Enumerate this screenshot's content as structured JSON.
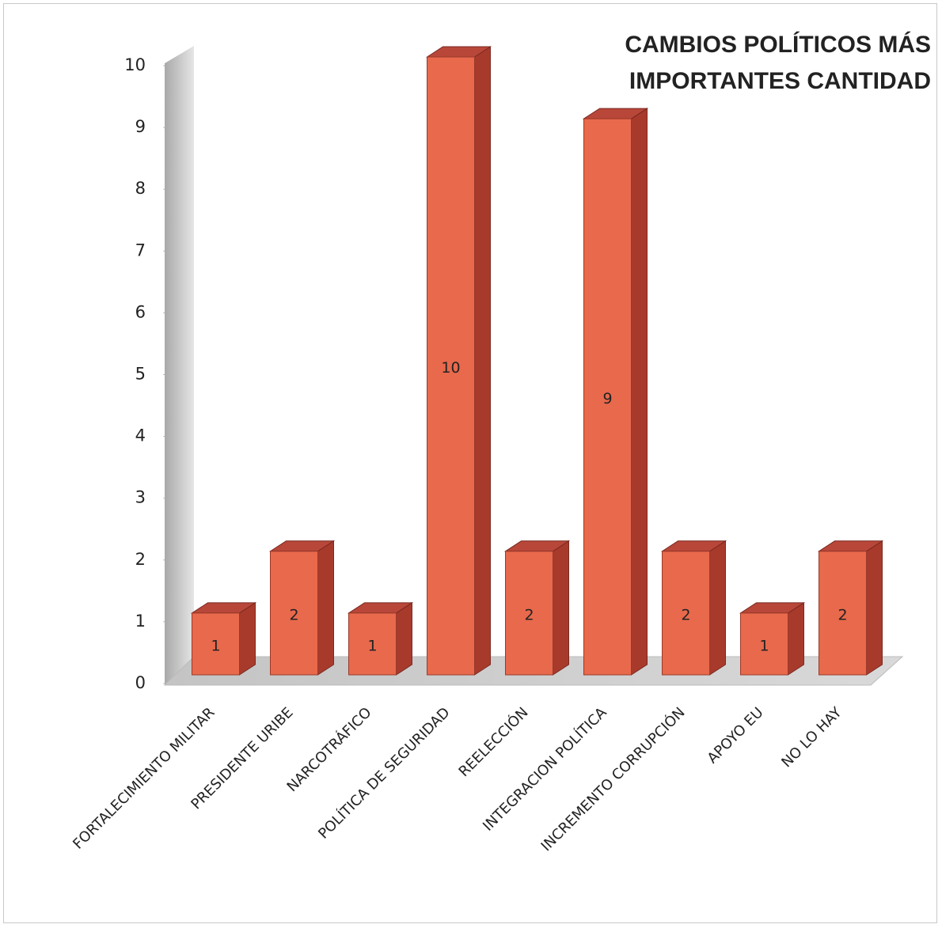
{
  "chart_data": {
    "type": "bar3d",
    "title": "CAMBIOS POLÍTICOS MÁS IMPORTANTES CANTIDAD",
    "categories": [
      "FORTALECIMIENTO MILITAR",
      "PRESIDENTE URIBE",
      "NARCOTRÁFICO",
      "POLÍTICA DE SEGURIDAD",
      "REELECCIÓN",
      "INTEGRACION POLÍTICA",
      "INCREMENTO CORRUPCIÓN",
      "APOYO EU",
      "NO LO HAY"
    ],
    "values": [
      1,
      2,
      1,
      10,
      2,
      9,
      2,
      1,
      2
    ],
    "color": "#e8694c",
    "ylim": [
      0,
      10
    ],
    "yticks": [
      0,
      1,
      2,
      3,
      4,
      5,
      6,
      7,
      8,
      9,
      10
    ]
  }
}
